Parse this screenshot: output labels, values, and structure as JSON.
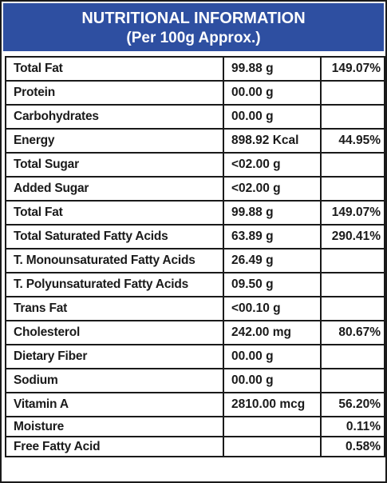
{
  "header": {
    "title": "NUTRITIONAL INFORMATION",
    "subtitle": "(Per 100g Approx.)",
    "background_color": "#2e4fa1"
  },
  "rows": [
    {
      "name": "Total Fat",
      "value": "99.88 g",
      "percent": "149.07%"
    },
    {
      "name": "Protein",
      "value": "00.00 g",
      "percent": ""
    },
    {
      "name": "Carbohydrates",
      "value": "00.00 g",
      "percent": ""
    },
    {
      "name": "Energy",
      "value": "898.92 Kcal",
      "percent": "44.95%"
    },
    {
      "name": "Total Sugar",
      "value": "<02.00 g",
      "percent": ""
    },
    {
      "name": "Added Sugar",
      "value": "<02.00 g",
      "percent": ""
    },
    {
      "name": "Total Fat",
      "value": "99.88 g",
      "percent": "149.07%"
    },
    {
      "name": "Total Saturated Fatty Acids",
      "value": "63.89 g",
      "percent": "290.41%"
    },
    {
      "name": "T. Monounsaturated Fatty Acids",
      "value": "26.49 g",
      "percent": ""
    },
    {
      "name": "T. Polyunsaturated Fatty Acids",
      "value": "09.50 g",
      "percent": ""
    },
    {
      "name": "Trans Fat",
      "value": "<00.10 g",
      "percent": ""
    },
    {
      "name": "Cholesterol",
      "value": "242.00 mg",
      "percent": "80.67%"
    },
    {
      "name": "Dietary Fiber",
      "value": "00.00 g",
      "percent": ""
    },
    {
      "name": "Sodium",
      "value": "00.00 g",
      "percent": ""
    },
    {
      "name": "Vitamin A",
      "value": "2810.00 mcg",
      "percent": "56.20%"
    },
    {
      "name": "Moisture",
      "value": "",
      "percent": "0.11%"
    },
    {
      "name": "Free Fatty Acid",
      "value": "",
      "percent": "0.58%"
    }
  ]
}
